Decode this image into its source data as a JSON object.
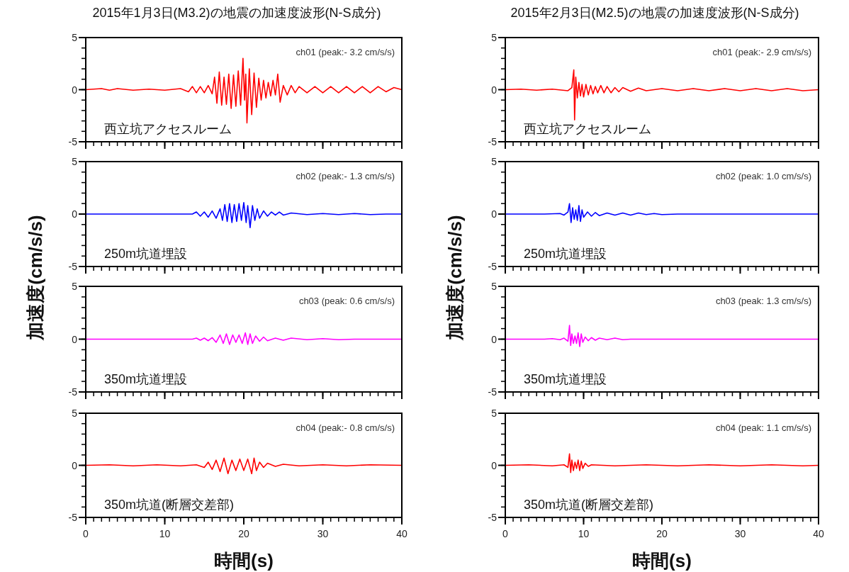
{
  "chart_data": [
    {
      "type": "line",
      "title": "2015年1月3日(M3.2)の地震の加速度波形(N-S成分)",
      "xlim": [
        0,
        40
      ],
      "xticks": [
        0,
        10,
        20,
        30,
        40
      ],
      "ylim": [
        -5,
        5
      ],
      "yticks": [
        -5,
        0,
        5
      ],
      "tick_labels": "y",
      "annotations": [
        "ch01 (peak:- 3.2 cm/s/s)",
        "西立坑アクセスルーム"
      ],
      "series": [
        {
          "color": "#ff0000",
          "x": [
            0,
            2,
            3,
            4,
            6,
            8,
            10,
            12,
            13,
            13.5,
            14,
            14.5,
            15,
            15.5,
            16,
            16.3,
            16.6,
            16.9,
            17.2,
            17.5,
            17.8,
            18.1,
            18.4,
            18.7,
            19,
            19.3,
            19.6,
            19.9,
            20.1,
            20.25,
            20.4,
            20.7,
            21,
            21.3,
            21.6,
            21.9,
            22.2,
            22.5,
            22.8,
            23.1,
            23.4,
            23.7,
            24,
            24.3,
            24.6,
            25,
            25.5,
            26,
            26.5,
            27,
            28,
            29,
            30,
            31,
            32,
            33,
            34,
            35,
            36,
            37,
            38,
            39,
            40
          ],
          "values": [
            0,
            0.1,
            -0.05,
            0.1,
            -0.05,
            0.05,
            -0.05,
            0.1,
            -0.2,
            0.3,
            -0.3,
            0.3,
            -0.3,
            0.4,
            -0.4,
            1.2,
            -1.3,
            1.7,
            -1.5,
            1.2,
            -1.4,
            1.5,
            -1.8,
            1.4,
            -1.6,
            1.8,
            -1.5,
            3.0,
            -1.0,
            1.5,
            -3.2,
            2.0,
            -2.4,
            1.6,
            -1.7,
            1.1,
            -1.0,
            0.9,
            -0.8,
            0.7,
            -0.6,
            0.9,
            -0.5,
            1.5,
            -1.2,
            0.4,
            -0.5,
            0.4,
            -0.3,
            0.3,
            -0.3,
            0.3,
            -0.3,
            0.3,
            -0.3,
            0.3,
            -0.3,
            0.3,
            -0.3,
            0.3,
            -0.2,
            0.2,
            0
          ]
        }
      ]
    },
    {
      "type": "line",
      "ylabel": "加速度(cm/s/s)",
      "xlim": [
        0,
        40
      ],
      "xticks": [
        0,
        10,
        20,
        30,
        40
      ],
      "ylim": [
        -5,
        5
      ],
      "yticks": [
        -5,
        0,
        5
      ],
      "tick_labels": "y",
      "annotations": [
        "ch02 (peak:- 1.3 cm/s/s)",
        "250m坑道埋設"
      ],
      "series": [
        {
          "color": "#0000ff",
          "x": [
            0,
            5,
            10,
            13.5,
            14,
            14.5,
            15,
            15.5,
            16,
            16.5,
            17,
            17.3,
            17.6,
            17.9,
            18.2,
            18.5,
            18.8,
            19.1,
            19.4,
            19.7,
            20,
            20.3,
            20.5,
            20.8,
            21.1,
            21.4,
            21.7,
            22,
            22.5,
            23,
            23.5,
            24,
            24.5,
            25,
            26,
            28,
            30,
            32,
            34,
            36,
            38,
            40
          ],
          "values": [
            0,
            0,
            0,
            0,
            0.2,
            -0.2,
            0.2,
            -0.3,
            0.3,
            -0.4,
            0.5,
            -0.6,
            0.9,
            -0.7,
            1.0,
            -0.8,
            0.9,
            -0.7,
            1.0,
            -0.6,
            1.1,
            -0.8,
            0.8,
            -1.3,
            0.8,
            -0.6,
            0.5,
            -0.4,
            0.3,
            -0.2,
            0.2,
            -0.1,
            0.2,
            -0.1,
            0.1,
            -0.05,
            0.05,
            -0.05,
            0.05,
            -0.05,
            0,
            0
          ]
        }
      ]
    },
    {
      "type": "line",
      "xlim": [
        0,
        40
      ],
      "xticks": [
        0,
        10,
        20,
        30,
        40
      ],
      "ylim": [
        -5,
        5
      ],
      "yticks": [
        -5,
        0,
        5
      ],
      "tick_labels": "y",
      "annotations": [
        "ch03 (peak: 0.6 cm/s/s)",
        "350m坑道埋設"
      ],
      "series": [
        {
          "color": "#ff00ff",
          "x": [
            0,
            5,
            10,
            13.5,
            14,
            14.5,
            15,
            15.5,
            16,
            16.5,
            17,
            17.4,
            17.8,
            18.2,
            18.6,
            19,
            19.4,
            19.8,
            20.2,
            20.5,
            20.8,
            21.1,
            21.5,
            22,
            22.5,
            23,
            24,
            25,
            26,
            28,
            30,
            32,
            34,
            37,
            40
          ],
          "values": [
            0,
            0,
            0,
            0,
            0.1,
            -0.1,
            0.1,
            -0.15,
            0.15,
            -0.3,
            0.4,
            -0.4,
            0.5,
            -0.5,
            0.4,
            -0.3,
            0.4,
            -0.4,
            0.6,
            -0.5,
            0.5,
            -0.4,
            0.3,
            -0.2,
            0.2,
            -0.15,
            0.1,
            -0.1,
            0.1,
            -0.05,
            0.05,
            -0.05,
            0,
            0,
            0
          ]
        }
      ]
    },
    {
      "type": "line",
      "xlabel": "時間(s)",
      "xlim": [
        0,
        40
      ],
      "xticks": [
        0,
        10,
        20,
        30,
        40
      ],
      "ylim": [
        -5,
        5
      ],
      "yticks": [
        -5,
        0,
        5
      ],
      "annotations": [
        "ch04 (peak:- 0.8 cm/s/s)",
        "350m坑道(断層交差部)"
      ],
      "series": [
        {
          "color": "#ff0000",
          "x": [
            0,
            3,
            6,
            9,
            12,
            14,
            15,
            15.5,
            16,
            16.5,
            17,
            17.5,
            18,
            18.5,
            19,
            19.5,
            20,
            20.5,
            21,
            21.3,
            21.6,
            22,
            22.5,
            23,
            24,
            25,
            27,
            30,
            33,
            36,
            40
          ],
          "values": [
            0,
            0.05,
            -0.05,
            0.05,
            -0.05,
            0.05,
            -0.2,
            0.3,
            -0.4,
            0.5,
            -0.6,
            0.7,
            -0.8,
            0.5,
            -0.5,
            0.6,
            -0.5,
            0.6,
            -0.8,
            0.7,
            -0.5,
            0.3,
            -0.2,
            0.2,
            -0.1,
            0.1,
            -0.05,
            0.05,
            -0.05,
            0.05,
            0
          ]
        }
      ]
    },
    {
      "type": "line",
      "title": "2015年2月3日(M2.5)の地震の加速度波形(N-S成分)",
      "xlim": [
        0,
        40
      ],
      "xticks": [
        0,
        10,
        20,
        30,
        40
      ],
      "ylim": [
        -5,
        5
      ],
      "yticks": [
        -5,
        0,
        5
      ],
      "tick_labels": "y",
      "annotations": [
        "ch01 (peak:- 2.9 cm/s/s)",
        "西立坑アクセスルーム"
      ],
      "series": [
        {
          "color": "#ff0000",
          "x": [
            0,
            2,
            4,
            6,
            8,
            8.5,
            8.75,
            8.85,
            9,
            9.2,
            9.4,
            9.6,
            9.8,
            10,
            10.3,
            10.6,
            10.9,
            11.2,
            11.5,
            11.8,
            12.2,
            12.6,
            13,
            13.5,
            14,
            14.5,
            15,
            16,
            17,
            18,
            20,
            22,
            24,
            26,
            28,
            30,
            32,
            34,
            36,
            38,
            40
          ],
          "values": [
            0,
            0.05,
            -0.05,
            0.05,
            -0.1,
            0.2,
            1.9,
            -2.9,
            1.2,
            -0.8,
            0.7,
            -0.6,
            0.5,
            -0.7,
            0.5,
            -0.5,
            0.4,
            -0.4,
            0.3,
            -0.3,
            0.4,
            -0.3,
            0.3,
            -0.3,
            0.2,
            -0.2,
            0.2,
            -0.15,
            0.15,
            -0.1,
            0.1,
            -0.1,
            0.1,
            -0.1,
            0.1,
            -0.1,
            0.1,
            -0.1,
            0.1,
            -0.1,
            0
          ]
        }
      ]
    },
    {
      "type": "line",
      "ylabel": "加速度(cm/s/s)",
      "xlim": [
        0,
        40
      ],
      "xticks": [
        0,
        10,
        20,
        30,
        40
      ],
      "ylim": [
        -5,
        5
      ],
      "yticks": [
        -5,
        0,
        5
      ],
      "tick_labels": "y",
      "annotations": [
        "ch02 (peak: 1.0 cm/s/s)",
        "250m坑道埋設"
      ],
      "series": [
        {
          "color": "#0000ff",
          "x": [
            0,
            5,
            7,
            7.5,
            8,
            8.2,
            8.4,
            8.6,
            8.8,
            9,
            9.2,
            9.4,
            9.6,
            9.8,
            10,
            10.5,
            11,
            11.5,
            12,
            13,
            14,
            15,
            16,
            17,
            18,
            19,
            20,
            22,
            25,
            30,
            35,
            40
          ],
          "values": [
            0,
            0,
            0.05,
            -0.1,
            0.2,
            1.0,
            -0.8,
            0.6,
            -0.5,
            0.4,
            -0.6,
            0.8,
            -0.7,
            0.4,
            -0.3,
            0.2,
            -0.2,
            0.15,
            -0.15,
            0.1,
            -0.1,
            0.1,
            -0.1,
            0.1,
            -0.05,
            0.05,
            -0.05,
            0,
            0,
            0,
            0,
            0
          ]
        }
      ]
    },
    {
      "type": "line",
      "xlim": [
        0,
        40
      ],
      "xticks": [
        0,
        10,
        20,
        30,
        40
      ],
      "ylim": [
        -5,
        5
      ],
      "yticks": [
        -5,
        0,
        5
      ],
      "tick_labels": "y",
      "annotations": [
        "ch03 (peak: 1.3 cm/s/s)",
        "350m坑道埋設"
      ],
      "series": [
        {
          "color": "#ff00ff",
          "x": [
            0,
            5,
            6,
            7,
            7.5,
            8,
            8.2,
            8.35,
            8.5,
            8.7,
            8.9,
            9.1,
            9.3,
            9.5,
            9.7,
            9.9,
            10.2,
            10.6,
            11,
            11.5,
            12,
            13,
            14,
            15,
            16,
            20,
            25,
            30,
            35,
            40
          ],
          "values": [
            0,
            0,
            0.05,
            -0.05,
            0.1,
            -0.2,
            1.3,
            -0.6,
            0.5,
            -0.4,
            0.3,
            -0.4,
            0.6,
            -0.7,
            0.5,
            -0.3,
            0.2,
            -0.15,
            0.15,
            -0.1,
            0.1,
            -0.05,
            0.1,
            -0.05,
            0,
            0,
            0,
            0,
            0,
            0
          ]
        }
      ]
    },
    {
      "type": "line",
      "xlabel": "時間(s)",
      "xlim": [
        0,
        40
      ],
      "xticks": [
        0,
        10,
        20,
        30,
        40
      ],
      "ylim": [
        -5,
        5
      ],
      "yticks": [
        -5,
        0,
        5
      ],
      "annotations": [
        "ch04 (peak: 1.1 cm/s/s)",
        "350m坑道(断層交差部)"
      ],
      "series": [
        {
          "color": "#ff0000",
          "x": [
            0,
            3,
            6,
            7.5,
            8,
            8.2,
            8.35,
            8.5,
            8.7,
            8.9,
            9.1,
            9.3,
            9.5,
            9.7,
            9.9,
            10.2,
            10.6,
            11,
            14,
            18,
            22,
            26,
            30,
            34,
            38,
            40
          ],
          "values": [
            0,
            0.05,
            -0.05,
            0.05,
            -0.2,
            1.1,
            -0.7,
            0.5,
            -0.5,
            0.3,
            -0.3,
            0.5,
            -0.5,
            0.4,
            -0.3,
            0.2,
            -0.1,
            0.05,
            -0.05,
            0.05,
            -0.05,
            0.05,
            -0.05,
            0.05,
            -0.05,
            0
          ]
        }
      ]
    }
  ]
}
